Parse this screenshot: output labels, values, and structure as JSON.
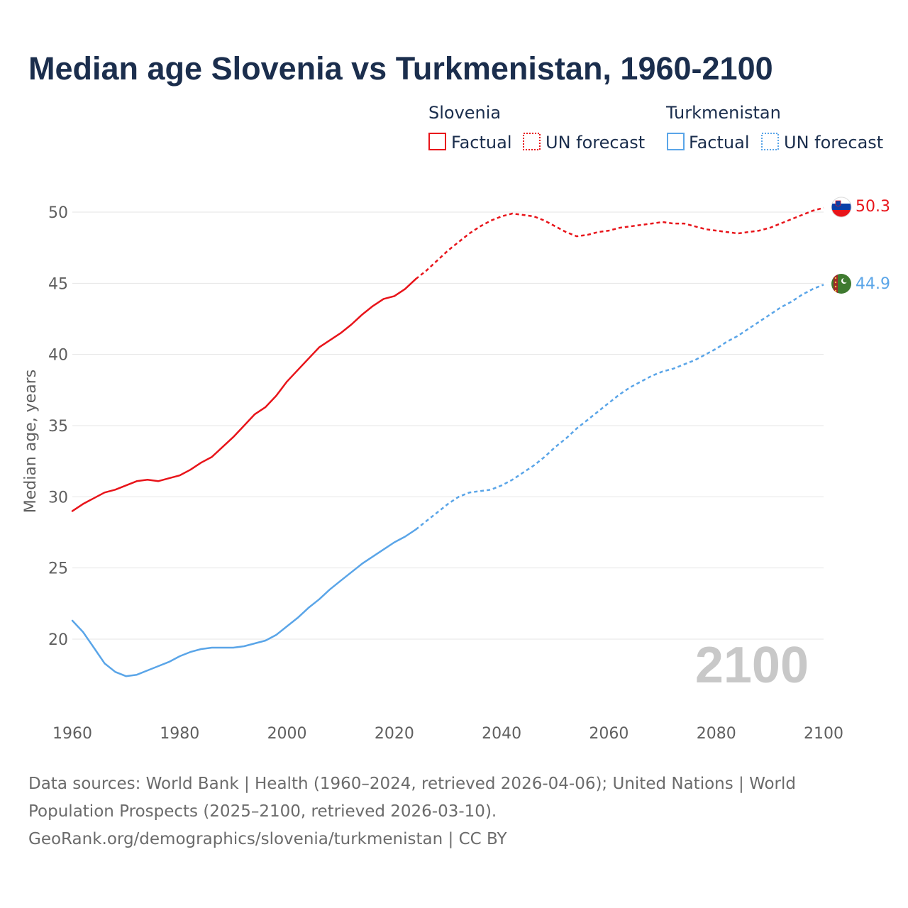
{
  "title": "Median age Slovenia vs Turkmenistan, 1960-2100",
  "legend": {
    "slovenia": {
      "name": "Slovenia",
      "factual": "Factual",
      "forecast": "UN forecast"
    },
    "turkmenistan": {
      "name": "Turkmenistan",
      "factual": "Factual",
      "forecast": "UN forecast"
    }
  },
  "colors": {
    "slovenia": "#e8141a",
    "turkmenistan": "#5aa5e8",
    "title": "#1b2e4d",
    "text": "#5f5f5f",
    "grid": "#e6e6e6",
    "year": "#c8c8c8"
  },
  "year_watermark": "2100",
  "end_labels": {
    "slovenia": "50.3",
    "turkmenistan": "44.9"
  },
  "flags": {
    "slovenia": "slovenia-flag",
    "turkmenistan": "turkmenistan-flag"
  },
  "source": {
    "line1": "Data sources: World Bank | Health (1960–2024, retrieved 2026-04-06); United Nations | World",
    "line2": "Population Prospects (2025–2100, retrieved 2026-03-10).",
    "line3": "GeoRank.org/demographics/slovenia/turkmenistan | CC BY"
  },
  "chart_data": {
    "type": "line",
    "title": "Median age Slovenia vs Turkmenistan, 1960-2100",
    "xlabel": "",
    "ylabel": "Median age, years",
    "xlim": [
      1960,
      2100
    ],
    "ylim": [
      15,
      52
    ],
    "x_ticks": [
      1960,
      1980,
      2000,
      2020,
      2040,
      2060,
      2080,
      2100
    ],
    "y_ticks": [
      20,
      25,
      30,
      35,
      40,
      45,
      50
    ],
    "grid": true,
    "forecast_start": 2024,
    "series": [
      {
        "name": "Slovenia",
        "points": [
          [
            1960,
            29.0
          ],
          [
            1962,
            29.5
          ],
          [
            1964,
            29.9
          ],
          [
            1966,
            30.3
          ],
          [
            1968,
            30.5
          ],
          [
            1970,
            30.8
          ],
          [
            1972,
            31.1
          ],
          [
            1974,
            31.2
          ],
          [
            1976,
            31.1
          ],
          [
            1978,
            31.3
          ],
          [
            1980,
            31.5
          ],
          [
            1982,
            31.9
          ],
          [
            1984,
            32.4
          ],
          [
            1986,
            32.8
          ],
          [
            1988,
            33.5
          ],
          [
            1990,
            34.2
          ],
          [
            1992,
            35.0
          ],
          [
            1994,
            35.8
          ],
          [
            1996,
            36.3
          ],
          [
            1998,
            37.1
          ],
          [
            2000,
            38.1
          ],
          [
            2002,
            38.9
          ],
          [
            2004,
            39.7
          ],
          [
            2006,
            40.5
          ],
          [
            2008,
            41.0
          ],
          [
            2010,
            41.5
          ],
          [
            2012,
            42.1
          ],
          [
            2014,
            42.8
          ],
          [
            2016,
            43.4
          ],
          [
            2018,
            43.9
          ],
          [
            2020,
            44.1
          ],
          [
            2022,
            44.6
          ],
          [
            2024,
            45.3
          ],
          [
            2026,
            45.9
          ],
          [
            2028,
            46.6
          ],
          [
            2030,
            47.3
          ],
          [
            2032,
            47.9
          ],
          [
            2034,
            48.5
          ],
          [
            2036,
            49.0
          ],
          [
            2038,
            49.4
          ],
          [
            2040,
            49.7
          ],
          [
            2042,
            49.9
          ],
          [
            2044,
            49.8
          ],
          [
            2046,
            49.7
          ],
          [
            2048,
            49.4
          ],
          [
            2050,
            49.0
          ],
          [
            2052,
            48.6
          ],
          [
            2054,
            48.3
          ],
          [
            2056,
            48.4
          ],
          [
            2058,
            48.6
          ],
          [
            2060,
            48.7
          ],
          [
            2062,
            48.9
          ],
          [
            2064,
            49.0
          ],
          [
            2066,
            49.1
          ],
          [
            2068,
            49.2
          ],
          [
            2070,
            49.3
          ],
          [
            2072,
            49.2
          ],
          [
            2074,
            49.2
          ],
          [
            2076,
            49.0
          ],
          [
            2078,
            48.8
          ],
          [
            2080,
            48.7
          ],
          [
            2082,
            48.6
          ],
          [
            2084,
            48.5
          ],
          [
            2086,
            48.6
          ],
          [
            2088,
            48.7
          ],
          [
            2090,
            48.9
          ],
          [
            2092,
            49.2
          ],
          [
            2094,
            49.5
          ],
          [
            2096,
            49.8
          ],
          [
            2098,
            50.1
          ],
          [
            2100,
            50.3
          ]
        ]
      },
      {
        "name": "Turkmenistan",
        "points": [
          [
            1960,
            21.3
          ],
          [
            1962,
            20.5
          ],
          [
            1964,
            19.4
          ],
          [
            1966,
            18.3
          ],
          [
            1968,
            17.7
          ],
          [
            1970,
            17.4
          ],
          [
            1972,
            17.5
          ],
          [
            1974,
            17.8
          ],
          [
            1976,
            18.1
          ],
          [
            1978,
            18.4
          ],
          [
            1980,
            18.8
          ],
          [
            1982,
            19.1
          ],
          [
            1984,
            19.3
          ],
          [
            1986,
            19.4
          ],
          [
            1988,
            19.4
          ],
          [
            1990,
            19.4
          ],
          [
            1992,
            19.5
          ],
          [
            1994,
            19.7
          ],
          [
            1996,
            19.9
          ],
          [
            1998,
            20.3
          ],
          [
            2000,
            20.9
          ],
          [
            2002,
            21.5
          ],
          [
            2004,
            22.2
          ],
          [
            2006,
            22.8
          ],
          [
            2008,
            23.5
          ],
          [
            2010,
            24.1
          ],
          [
            2012,
            24.7
          ],
          [
            2014,
            25.3
          ],
          [
            2016,
            25.8
          ],
          [
            2018,
            26.3
          ],
          [
            2020,
            26.8
          ],
          [
            2022,
            27.2
          ],
          [
            2024,
            27.7
          ],
          [
            2026,
            28.3
          ],
          [
            2028,
            28.9
          ],
          [
            2030,
            29.5
          ],
          [
            2032,
            30.0
          ],
          [
            2034,
            30.3
          ],
          [
            2036,
            30.4
          ],
          [
            2038,
            30.5
          ],
          [
            2040,
            30.8
          ],
          [
            2042,
            31.2
          ],
          [
            2044,
            31.7
          ],
          [
            2046,
            32.2
          ],
          [
            2048,
            32.8
          ],
          [
            2050,
            33.5
          ],
          [
            2052,
            34.1
          ],
          [
            2054,
            34.8
          ],
          [
            2056,
            35.4
          ],
          [
            2058,
            36.0
          ],
          [
            2060,
            36.6
          ],
          [
            2062,
            37.2
          ],
          [
            2064,
            37.7
          ],
          [
            2066,
            38.1
          ],
          [
            2068,
            38.5
          ],
          [
            2070,
            38.8
          ],
          [
            2072,
            39.0
          ],
          [
            2074,
            39.3
          ],
          [
            2076,
            39.6
          ],
          [
            2078,
            40.0
          ],
          [
            2080,
            40.4
          ],
          [
            2082,
            40.9
          ],
          [
            2084,
            41.3
          ],
          [
            2086,
            41.8
          ],
          [
            2088,
            42.3
          ],
          [
            2090,
            42.8
          ],
          [
            2092,
            43.3
          ],
          [
            2094,
            43.7
          ],
          [
            2096,
            44.2
          ],
          [
            2098,
            44.6
          ],
          [
            2100,
            44.9
          ]
        ]
      }
    ]
  }
}
